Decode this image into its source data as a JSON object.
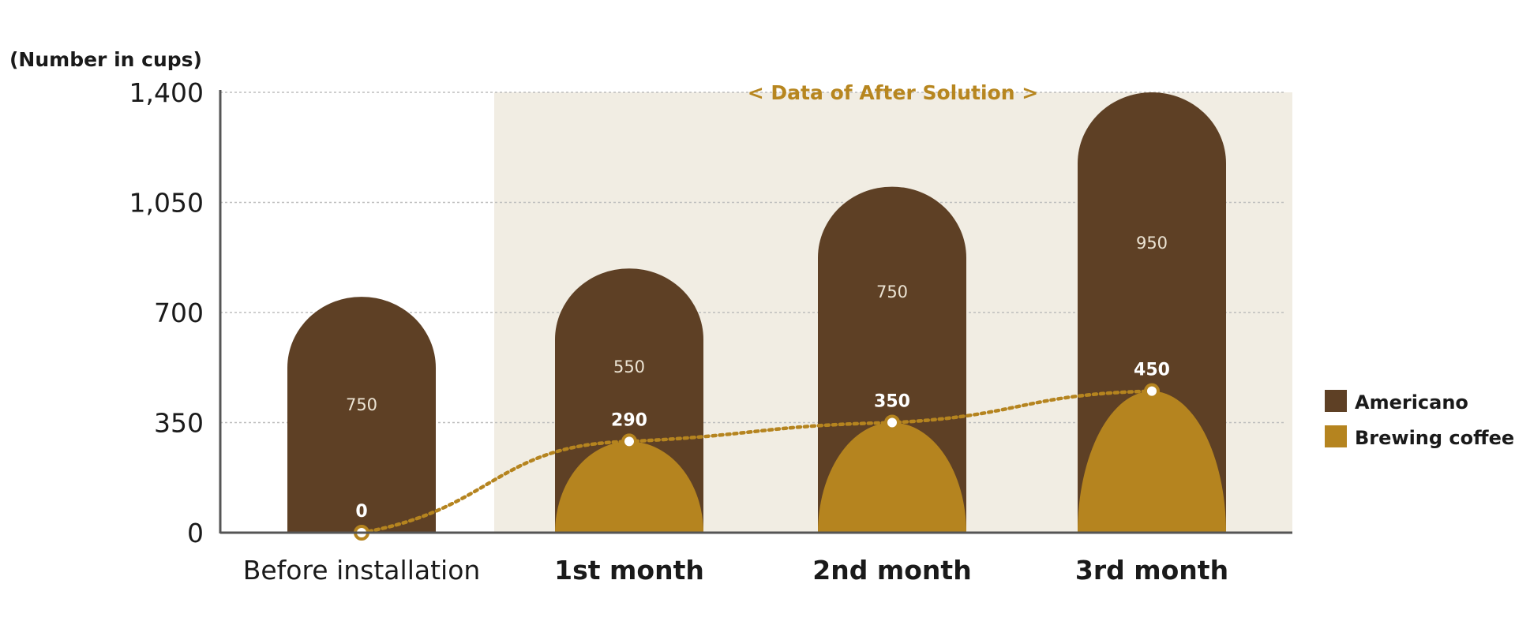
{
  "chart_data": {
    "type": "bar",
    "unit_label": "(Number in cups)",
    "band_title": "< Data of After Solution >",
    "categories": [
      "Before installation",
      "1st month",
      "2nd month",
      "3rd month"
    ],
    "yticks": [
      "0",
      "350",
      "700",
      "1,050",
      "1,400"
    ],
    "ylim": [
      0,
      1400
    ],
    "series": [
      {
        "name": "Americano",
        "values": [
          750,
          550,
          750,
          950
        ],
        "color": "#5e4025"
      },
      {
        "name": "Brewing coffee",
        "values": [
          0,
          290,
          350,
          450
        ],
        "color": "#b5841f"
      }
    ],
    "value_labels": {
      "americano": [
        "750",
        "550",
        "750",
        "950"
      ],
      "brewing": [
        "0",
        "290",
        "350",
        "450"
      ]
    },
    "colors": {
      "band": "#f1ede3",
      "line": "#b5841f",
      "axis": "#555555",
      "grid": "#bdbdbd"
    },
    "grid": true,
    "legend_position": "right"
  }
}
